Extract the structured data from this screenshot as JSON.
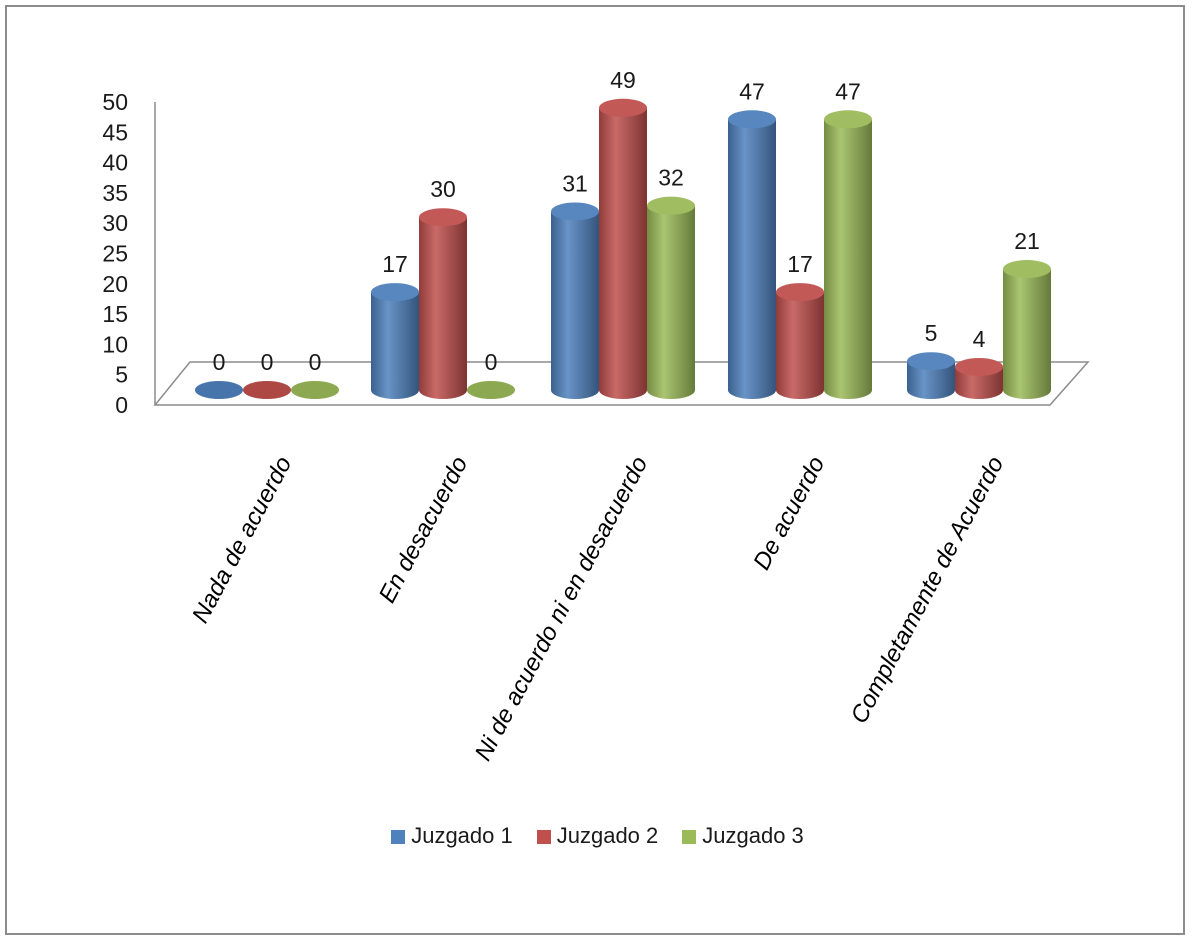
{
  "chart_data": {
    "type": "bar",
    "categories": [
      "Nada de acuerdo",
      "En desacuerdo",
      "Ni de acuerdo ni en desacuerdo",
      "De acuerdo",
      "Completamente de Acuerdo"
    ],
    "series": [
      {
        "name": "Juzgado 1",
        "values": [
          0,
          17,
          31,
          47,
          5
        ],
        "color": "#4f81bd"
      },
      {
        "name": "Juzgado 2",
        "values": [
          0,
          30,
          49,
          17,
          4
        ],
        "color": "#c0504d"
      },
      {
        "name": "Juzgado 3",
        "values": [
          0,
          0,
          32,
          47,
          21
        ],
        "color": "#9bbb59"
      }
    ],
    "yticks": [
      0,
      5,
      10,
      15,
      20,
      25,
      30,
      35,
      40,
      45,
      50
    ],
    "ylim": [
      0,
      50
    ],
    "legend_position": "bottom",
    "grid": false,
    "style": "3d-cylinder"
  }
}
